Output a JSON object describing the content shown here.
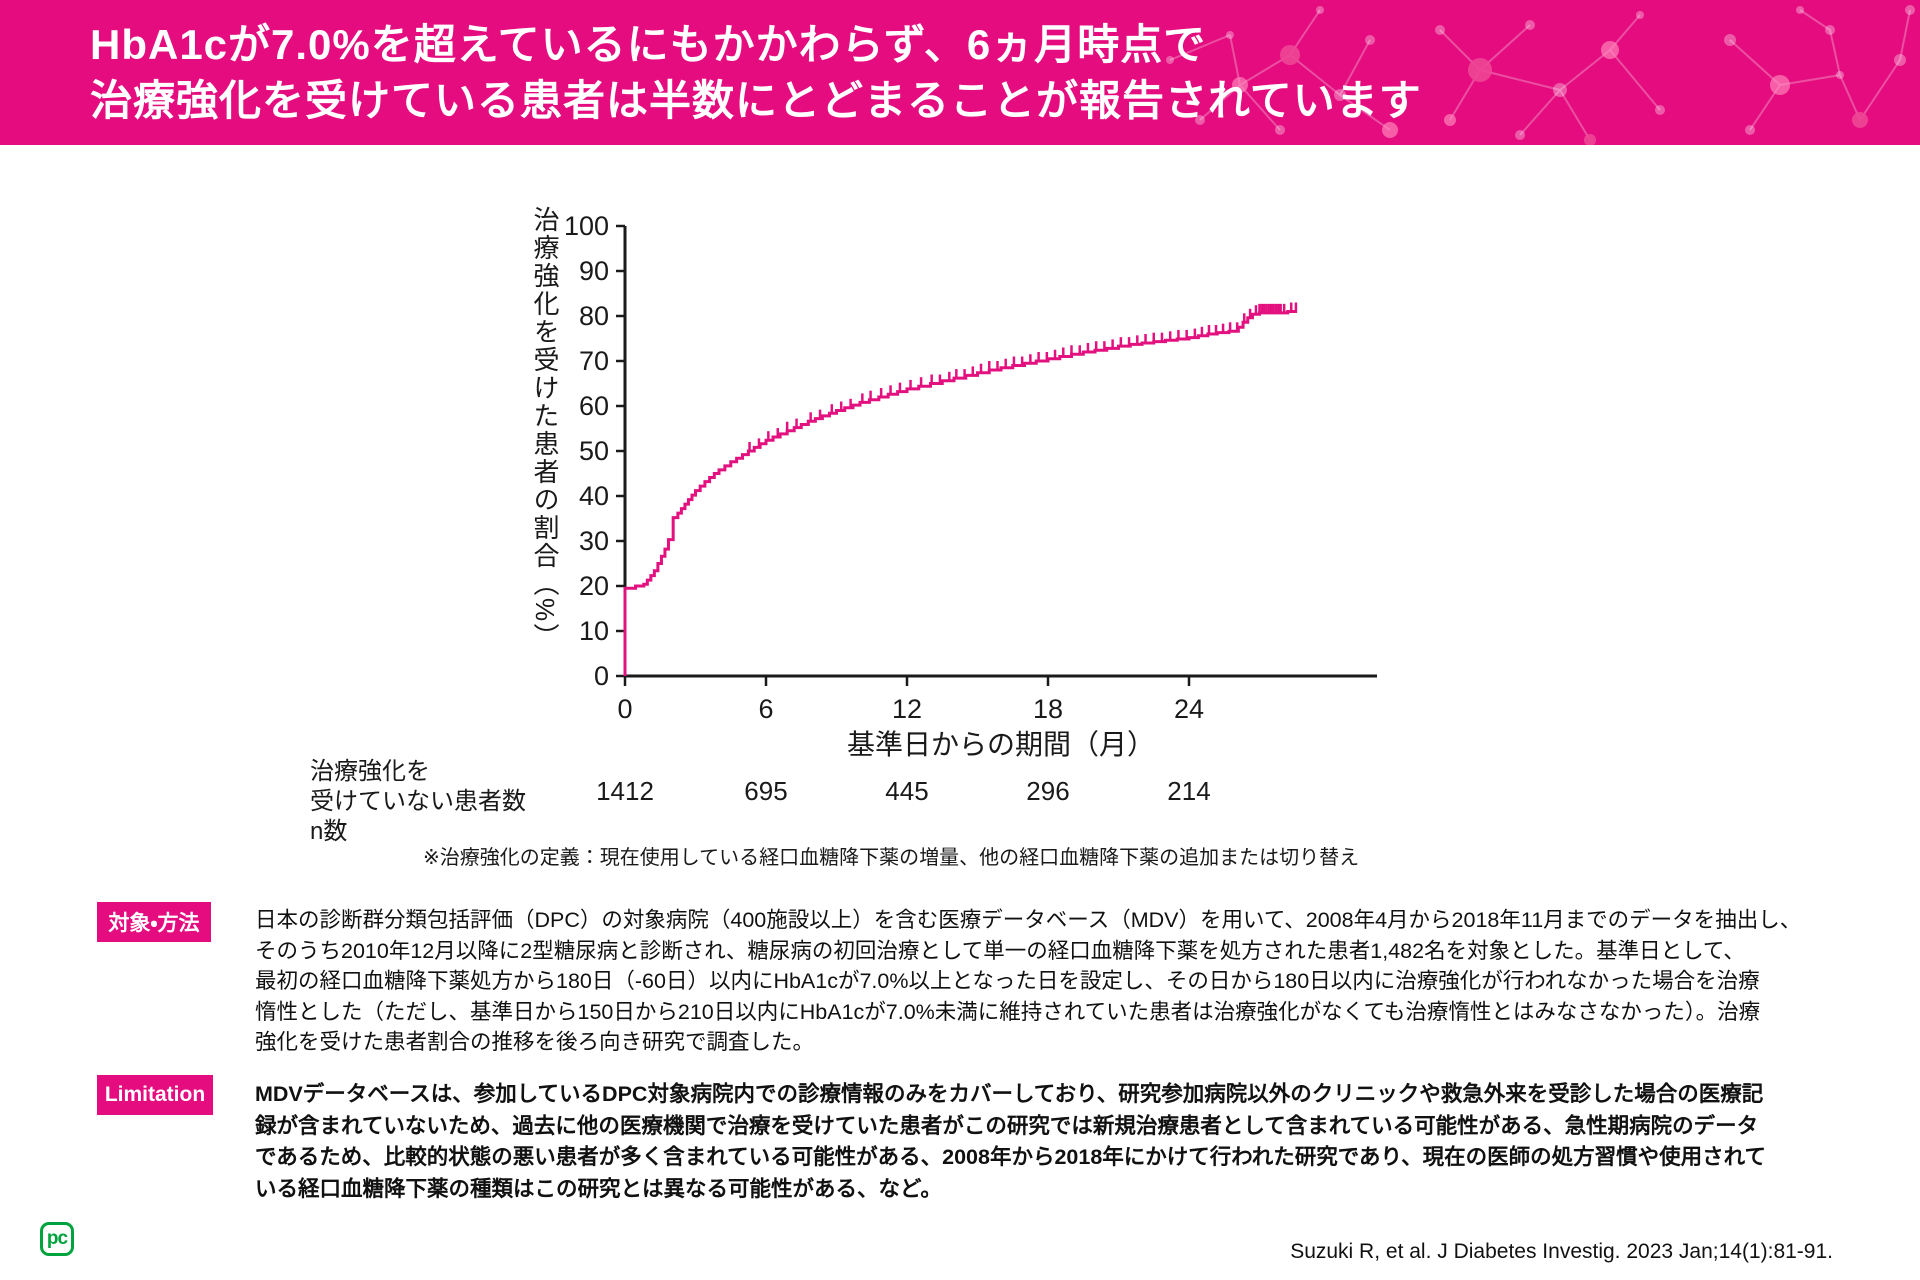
{
  "header": {
    "title_line1": "HbA1cが7.0%を超えているにもかかわらず、6ヵ月時点で",
    "title_line2": "治療強化を受けている患者は半数にとどまることが報告されています"
  },
  "chart_data": {
    "type": "line",
    "subtype": "kaplan-meier-step",
    "title": "",
    "xlabel": "基準日からの期間（月）",
    "ylabel": "治療強化を受けた患者の割合（%）",
    "xlim": [
      0,
      32
    ],
    "ylim": [
      0,
      100
    ],
    "x_ticks": [
      0,
      6,
      12,
      18,
      24
    ],
    "y_ticks": [
      0,
      10,
      20,
      30,
      40,
      50,
      60,
      70,
      80,
      90,
      100
    ],
    "grid": false,
    "legend": "none",
    "series": [
      {
        "name": "治療強化を受けた患者の割合（%）",
        "color": "#e3107f",
        "points": [
          [
            0,
            19.5
          ],
          [
            0.45,
            20.0
          ],
          [
            0.8,
            20.4
          ],
          [
            0.95,
            21.3
          ],
          [
            1.1,
            22.3
          ],
          [
            1.25,
            23.4
          ],
          [
            1.4,
            25.0
          ],
          [
            1.55,
            26.6
          ],
          [
            1.7,
            28.2
          ],
          [
            1.85,
            30.3
          ],
          [
            2.05,
            35.2
          ],
          [
            2.25,
            36.2
          ],
          [
            2.4,
            37.2
          ],
          [
            2.55,
            38.2
          ],
          [
            2.7,
            39.2
          ],
          [
            2.85,
            40.2
          ],
          [
            3.0,
            41.2
          ],
          [
            3.2,
            42.2
          ],
          [
            3.4,
            43.2
          ],
          [
            3.6,
            44.1
          ],
          [
            3.8,
            45.0
          ],
          [
            4.0,
            45.8
          ],
          [
            4.25,
            46.7
          ],
          [
            4.5,
            47.6
          ],
          [
            4.75,
            48.4
          ],
          [
            5.0,
            49.2
          ],
          [
            5.25,
            50.0
          ],
          [
            5.5,
            50.8
          ],
          [
            5.75,
            51.6
          ],
          [
            6.0,
            52.4
          ],
          [
            6.3,
            53.1
          ],
          [
            6.6,
            53.8
          ],
          [
            6.9,
            54.5
          ],
          [
            7.2,
            55.2
          ],
          [
            7.5,
            55.9
          ],
          [
            7.8,
            56.6
          ],
          [
            8.1,
            57.2
          ],
          [
            8.4,
            57.8
          ],
          [
            8.7,
            58.4
          ],
          [
            9.0,
            59.0
          ],
          [
            9.35,
            59.6
          ],
          [
            9.7,
            60.2
          ],
          [
            10.0,
            60.8
          ],
          [
            10.4,
            61.4
          ],
          [
            10.8,
            62.0
          ],
          [
            11.2,
            62.6
          ],
          [
            11.6,
            63.2
          ],
          [
            12.0,
            63.8
          ],
          [
            12.5,
            64.4
          ],
          [
            13.0,
            65.0
          ],
          [
            13.5,
            65.6
          ],
          [
            14.0,
            66.2
          ],
          [
            14.5,
            66.8
          ],
          [
            15.0,
            67.4
          ],
          [
            15.5,
            68.0
          ],
          [
            16.0,
            68.5
          ],
          [
            16.5,
            69.0
          ],
          [
            17.0,
            69.5
          ],
          [
            17.5,
            70.0
          ],
          [
            18.0,
            70.5
          ],
          [
            18.5,
            71.0
          ],
          [
            19.0,
            71.5
          ],
          [
            19.5,
            72.0
          ],
          [
            20.0,
            72.4
          ],
          [
            20.5,
            72.8
          ],
          [
            21.0,
            73.3
          ],
          [
            21.5,
            73.7
          ],
          [
            22.0,
            74.0
          ],
          [
            22.5,
            74.3
          ],
          [
            23.0,
            74.6
          ],
          [
            23.5,
            74.9
          ],
          [
            24.0,
            75.2
          ],
          [
            24.4,
            75.6
          ],
          [
            24.8,
            76.0
          ],
          [
            25.2,
            76.3
          ],
          [
            25.7,
            76.6
          ],
          [
            26.1,
            77.5
          ],
          [
            26.3,
            78.6
          ],
          [
            26.5,
            79.6
          ],
          [
            26.7,
            80.4
          ],
          [
            27.0,
            80.7
          ],
          [
            28.2,
            81.0
          ],
          [
            28.6,
            81.0
          ]
        ]
      }
    ],
    "censor_ticks": [
      5.3,
      5.7,
      6.1,
      6.5,
      6.9,
      7.3,
      7.9,
      8.3,
      8.8,
      9.2,
      9.6,
      10.1,
      10.45,
      10.9,
      11.3,
      11.7,
      12.15,
      12.6,
      13.05,
      13.4,
      13.8,
      14.1,
      14.45,
      14.8,
      15.15,
      15.5,
      15.85,
      16.2,
      16.55,
      16.9,
      17.25,
      17.6,
      17.95,
      18.3,
      18.65,
      19.0,
      19.35,
      19.7,
      20.05,
      20.4,
      20.75,
      21.1,
      21.45,
      21.8,
      22.15,
      22.5,
      22.85,
      23.2,
      23.55,
      23.9,
      24.25,
      24.55,
      24.85,
      25.15,
      25.45,
      25.75,
      26.05,
      26.35,
      26.6,
      26.85,
      27.0,
      27.1,
      27.2,
      27.3,
      27.4,
      27.5,
      27.6,
      27.7,
      27.8,
      27.9,
      28.05,
      28.35,
      28.55
    ],
    "at_risk": {
      "label": "治療強化を\n受けていない患者数\nn数",
      "times": [
        0,
        6,
        12,
        18,
        24
      ],
      "counts": [
        "1412",
        "695",
        "445",
        "296",
        "214"
      ]
    }
  },
  "footnote": "※治療強化の定義：現在使用している経口血糖降下薬の増量、他の経口血糖降下薬の追加または切り替え",
  "sections": {
    "methods": {
      "badge": "対象・方法",
      "text": "日本の診断群分類包括評価（DPC）の対象病院（400施設以上）を含む医療データベース（MDV）を用いて、2008年4月から2018年11月までのデータを抽出し、\nそのうち2010年12月以降に2型糖尿病と診断され、糖尿病の初回治療として単一の経口血糖降下薬を処方された患者1,482名を対象とした。基準日として、\n最初の経口血糖降下薬処方から180日（-60日）以内にHbA1cが7.0%以上となった日を設定し、その日から180日以内に治療強化が行われなかった場合を治療\n惰性とした（ただし、基準日から150日から210日以内にHbA1cが7.0%未満に維持されていた患者は治療強化がなくても治療惰性とはみなさなかった）。治療\n強化を受けた患者割合の推移を後ろ向き研究で調査した。"
    },
    "limitation": {
      "badge": "Limitation",
      "text": "MDVデータベースは、参加しているDPC対象病院内での診療情報のみをカバーしており、研究参加病院以外のクリニックや救急外来を受診した場合の医療記\n録が含まれていないため、過去に他の医療機関で治療を受けていた患者がこの研究では新規治療患者として含まれている可能性がある、急性期病院のデータ\nであるため、比較的状態の悪い患者が多く含まれている可能性がある、2008年から2018年にかけて行われた研究であり、現在の医師の処方習慣や使用されて\nいる経口血糖降下薬の種類はこの研究とは異なる可能性がある、など。"
    }
  },
  "citation": "Suzuki R, et al. J Diabetes Investig. 2023 Jan;14(1):81-91.",
  "logo": {
    "text": "pc"
  },
  "colors": {
    "accent_pink": "#e40c7f",
    "curve_pink": "#e3107f",
    "logo_green": "#00a23e",
    "text_black": "#111111"
  }
}
